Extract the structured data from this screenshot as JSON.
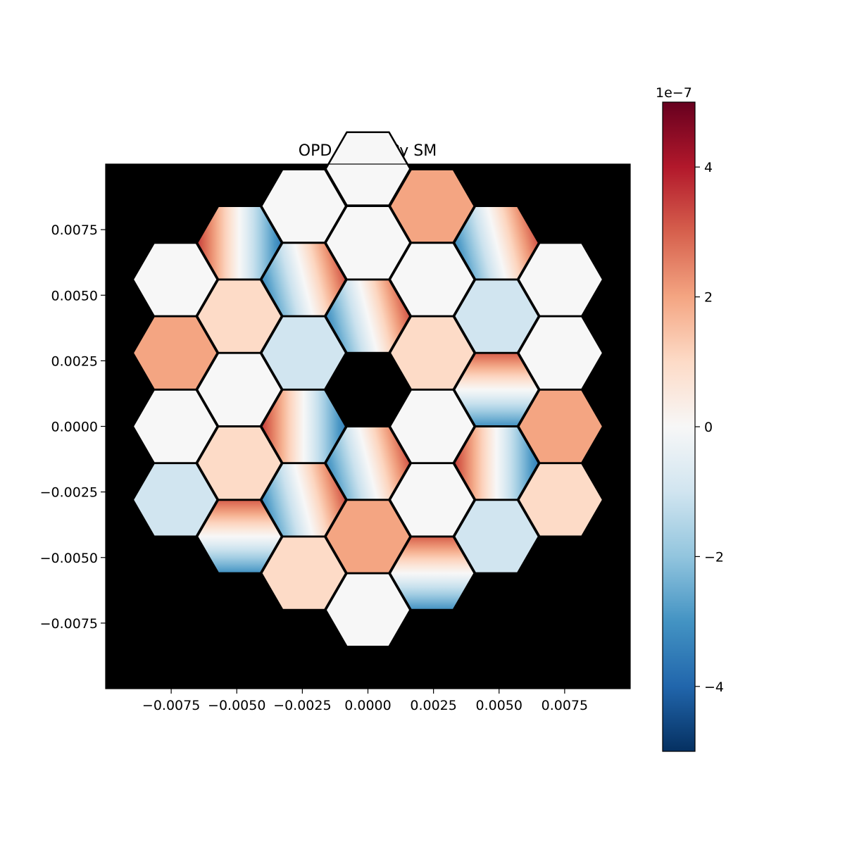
{
  "chart_data": {
    "type": "heatmap",
    "title": "OPD for HCIPy SM",
    "xlabel": "",
    "ylabel": "",
    "xlim": [
      -0.01,
      0.01
    ],
    "ylim": [
      -0.01,
      0.01
    ],
    "x_ticks": [
      -0.0075,
      -0.005,
      -0.0025,
      0.0,
      0.0025,
      0.005,
      0.0075
    ],
    "y_ticks": [
      0.0075,
      0.005,
      0.0025,
      0.0,
      -0.0025,
      -0.005,
      -0.0075
    ],
    "x_tick_labels": [
      "−0.0075",
      "−0.0050",
      "−0.0025",
      "0.0000",
      "0.0025",
      "0.0050",
      "0.0075"
    ],
    "y_tick_labels": [
      "0.0075",
      "0.0050",
      "0.0025",
      "0.0000",
      "−0.0025",
      "−0.0050",
      "−0.0075"
    ],
    "background_color": "#000000",
    "segment_edge_color": "#000000",
    "grid": false,
    "colormap": "RdBu_r",
    "colorbar": {
      "range": [
        -5,
        5
      ],
      "scale_label": "1e−7",
      "ticks": [
        4,
        2,
        0,
        -2,
        -4
      ],
      "tick_labels": [
        "4",
        "2",
        "0",
        "−2",
        "−4"
      ],
      "stops": [
        "#053061",
        "#2166ac",
        "#4393c3",
        "#92c5de",
        "#d1e5f0",
        "#f7f7f7",
        "#fddbc7",
        "#f4a582",
        "#d6604d",
        "#b2182b",
        "#67001f"
      ]
    },
    "segments": [
      {
        "x": 0.0,
        "y": 0.00982,
        "piston": 0,
        "tip": 0,
        "tilt": 0
      },
      {
        "x": -0.00245,
        "y": 0.0084,
        "piston": 0,
        "tip": 0,
        "tilt": 0
      },
      {
        "x": 0.00245,
        "y": 0.0084,
        "piston": 2,
        "tip": 0,
        "tilt": 0
      },
      {
        "x": -0.0049,
        "y": 0.007,
        "piston": 0,
        "tip": 0,
        "tilt": -3.5
      },
      {
        "x": 0.0,
        "y": 0.007,
        "piston": 0,
        "tip": 0,
        "tilt": 0
      },
      {
        "x": 0.0049,
        "y": 0.007,
        "piston": 0,
        "tip": 0.8,
        "tilt": 3.2
      },
      {
        "x": -0.00735,
        "y": 0.0056,
        "piston": 0,
        "tip": 0,
        "tilt": 0
      },
      {
        "x": -0.00245,
        "y": 0.0056,
        "piston": 0,
        "tip": 0.8,
        "tilt": 3.2
      },
      {
        "x": 0.00245,
        "y": 0.0056,
        "piston": 0,
        "tip": 0,
        "tilt": 0
      },
      {
        "x": 0.00735,
        "y": 0.0056,
        "piston": 0,
        "tip": 0,
        "tilt": 0
      },
      {
        "x": -0.0049,
        "y": 0.0042,
        "piston": 1,
        "tip": 0,
        "tilt": 0
      },
      {
        "x": 0.0,
        "y": 0.0042,
        "piston": 0,
        "tip": 0.8,
        "tilt": 3.2
      },
      {
        "x": 0.0049,
        "y": 0.0042,
        "piston": -1,
        "tip": 0,
        "tilt": 0
      },
      {
        "x": -0.00735,
        "y": 0.0028,
        "piston": 2,
        "tip": 0,
        "tilt": 0
      },
      {
        "x": -0.00245,
        "y": 0.0028,
        "piston": -1,
        "tip": 0,
        "tilt": 0
      },
      {
        "x": 0.00245,
        "y": 0.0028,
        "piston": 1,
        "tip": 0,
        "tilt": 0
      },
      {
        "x": 0.00735,
        "y": 0.0028,
        "piston": 0,
        "tip": 0,
        "tilt": 0
      },
      {
        "x": -0.0049,
        "y": 0.0014,
        "piston": 0,
        "tip": 0,
        "tilt": 0
      },
      {
        "x": 0.0049,
        "y": 0.0014,
        "piston": 0,
        "tip": 3.5,
        "tilt": 0
      },
      {
        "x": -0.00735,
        "y": 0.0,
        "piston": 0,
        "tip": 0,
        "tilt": 0
      },
      {
        "x": -0.00245,
        "y": 0.0,
        "piston": 0,
        "tip": 0,
        "tilt": -3.5
      },
      {
        "x": 0.00245,
        "y": 0.0,
        "piston": 0,
        "tip": 0,
        "tilt": 0
      },
      {
        "x": 0.00735,
        "y": 0.0,
        "piston": 2,
        "tip": 0,
        "tilt": 0
      },
      {
        "x": -0.0049,
        "y": -0.0014,
        "piston": 1,
        "tip": 0,
        "tilt": 0
      },
      {
        "x": 0.0,
        "y": -0.0014,
        "piston": 0,
        "tip": 0.8,
        "tilt": 3.2
      },
      {
        "x": 0.0049,
        "y": -0.0014,
        "piston": 0,
        "tip": 0,
        "tilt": -3.5
      },
      {
        "x": -0.00735,
        "y": -0.0028,
        "piston": -1,
        "tip": 0,
        "tilt": 0
      },
      {
        "x": -0.00245,
        "y": -0.0028,
        "piston": 0,
        "tip": 0.8,
        "tilt": 3.2
      },
      {
        "x": 0.00245,
        "y": -0.0028,
        "piston": 0,
        "tip": 0,
        "tilt": 0
      },
      {
        "x": 0.00735,
        "y": -0.0028,
        "piston": 1,
        "tip": 0,
        "tilt": 0
      },
      {
        "x": -0.0049,
        "y": -0.0042,
        "piston": 0,
        "tip": 3.5,
        "tilt": 0
      },
      {
        "x": 0.0,
        "y": -0.0042,
        "piston": 2,
        "tip": 0,
        "tilt": 0
      },
      {
        "x": 0.0049,
        "y": -0.0042,
        "piston": -1,
        "tip": 0,
        "tilt": 0
      },
      {
        "x": -0.00245,
        "y": -0.0056,
        "piston": 1,
        "tip": 0,
        "tilt": 0
      },
      {
        "x": 0.00245,
        "y": -0.0056,
        "piston": 0,
        "tip": 3.5,
        "tilt": 0
      },
      {
        "x": 0.0,
        "y": -0.007,
        "piston": 0,
        "tip": 0,
        "tilt": 0
      }
    ]
  }
}
